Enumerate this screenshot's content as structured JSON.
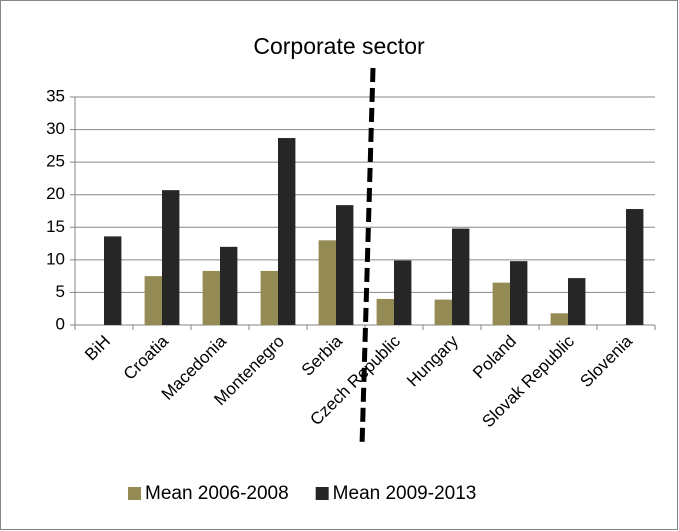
{
  "chart_data": {
    "type": "bar",
    "title": "Corporate sector",
    "categories": [
      "BiH",
      "Croatia",
      "Macedonia",
      "Montenegro",
      "Serbia",
      "Czech Republic",
      "Hungary",
      "Poland",
      "Slovak Republic",
      "Slovenia"
    ],
    "series": [
      {
        "name": "Mean 2006-2008",
        "color": "#948a54",
        "values": [
          null,
          7.5,
          8.3,
          8.3,
          13,
          4,
          3.9,
          6.5,
          1.8,
          null
        ]
      },
      {
        "name": "Mean 2009-2013",
        "color": "#262626",
        "values": [
          13.6,
          20.7,
          12,
          28.7,
          18.4,
          9.9,
          14.8,
          9.8,
          7.2,
          17.8
        ]
      }
    ],
    "ylim": [
      0,
      35
    ],
    "yticks": [
      0,
      5,
      10,
      15,
      20,
      25,
      30,
      35
    ],
    "grid": true,
    "legend": "bottom"
  }
}
